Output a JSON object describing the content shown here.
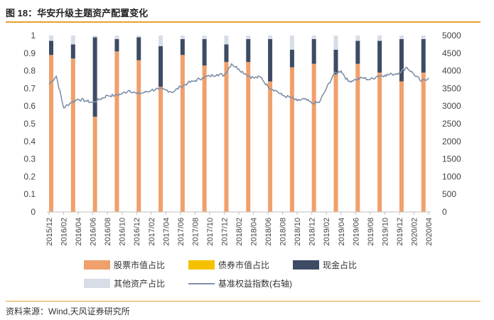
{
  "figure": {
    "title": "图 18：华安升级主题资产配置变化",
    "source": "资料来源：Wind,天风证券研究所"
  },
  "colors": {
    "stock": "#f0a06b",
    "bond": "#f5c000",
    "cash": "#3d4b64",
    "other": "#d7dde6",
    "index": "#8090a8",
    "rule": "#e8a030"
  },
  "chart_data": {
    "type": "bar",
    "title": "",
    "xlabel": "",
    "ylabel": "",
    "ylim": [
      0,
      1
    ],
    "y2lim": [
      0,
      5000
    ],
    "yticks": [
      "0",
      "0.1",
      "0.2",
      "0.3",
      "0.4",
      "0.5",
      "0.6",
      "0.7",
      "0.8",
      "0.9",
      "1"
    ],
    "y2ticks": [
      "0",
      "500",
      "1000",
      "1500",
      "2000",
      "2500",
      "3000",
      "3500",
      "4000",
      "4500",
      "5000"
    ],
    "x_tick_labels": [
      "2015/12",
      "2016/02",
      "2016/04",
      "2016/06",
      "2016/08",
      "2016/10",
      "2016/12",
      "2017/02",
      "2017/04",
      "2017/06",
      "2017/08",
      "2017/10",
      "2017/12",
      "2018/02",
      "2018/04",
      "2018/06",
      "2018/08",
      "2018/10",
      "2018/12",
      "2019/02",
      "2019/04",
      "2019/06",
      "2019/08",
      "2019/10",
      "2019/12",
      "2020/02",
      "2020/04"
    ],
    "categories": [
      "2015/12",
      "2016/03",
      "2016/06",
      "2016/09",
      "2016/12",
      "2017/03",
      "2017/06",
      "2017/09",
      "2017/12",
      "2018/03",
      "2018/06",
      "2018/09",
      "2018/12",
      "2019/03",
      "2019/06",
      "2019/09",
      "2019/12",
      "2020/03"
    ],
    "series": [
      {
        "name": "股票市值占比",
        "key": "stock",
        "values": [
          0.89,
          0.87,
          0.54,
          0.91,
          0.86,
          0.71,
          0.89,
          0.83,
          0.85,
          0.85,
          0.74,
          0.82,
          0.84,
          0.78,
          0.84,
          0.79,
          0.74,
          0.79
        ]
      },
      {
        "name": "债券市值占比",
        "key": "bond",
        "values": [
          0.0,
          0.0,
          0.0,
          0.0,
          0.0,
          0.0,
          0.0,
          0.0,
          0.0,
          0.0,
          0.0,
          0.0,
          0.0,
          0.0,
          0.0,
          0.0,
          0.0,
          0.0
        ]
      },
      {
        "name": "现金占比",
        "key": "cash",
        "values": [
          0.08,
          0.08,
          0.45,
          0.07,
          0.13,
          0.23,
          0.09,
          0.15,
          0.1,
          0.13,
          0.24,
          0.1,
          0.14,
          0.14,
          0.13,
          0.18,
          0.24,
          0.19
        ]
      },
      {
        "name": "其他资产占比",
        "key": "other",
        "values": [
          0.03,
          0.05,
          0.01,
          0.02,
          0.01,
          0.06,
          0.02,
          0.02,
          0.05,
          0.02,
          0.02,
          0.08,
          0.02,
          0.08,
          0.03,
          0.03,
          0.02,
          0.02
        ]
      }
    ],
    "line_series": {
      "name": "基准权益指数(右轴)",
      "axis": "right",
      "x": [
        "2015/12",
        "2016/01",
        "2016/02",
        "2016/03",
        "2016/04",
        "2016/05",
        "2016/06",
        "2016/07",
        "2016/08",
        "2016/09",
        "2016/10",
        "2016/11",
        "2016/12",
        "2017/01",
        "2017/02",
        "2017/03",
        "2017/04",
        "2017/05",
        "2017/06",
        "2017/07",
        "2017/08",
        "2017/09",
        "2017/10",
        "2017/11",
        "2017/12",
        "2018/01",
        "2018/02",
        "2018/03",
        "2018/04",
        "2018/05",
        "2018/06",
        "2018/07",
        "2018/08",
        "2018/09",
        "2018/10",
        "2018/11",
        "2018/12",
        "2019/01",
        "2019/02",
        "2019/03",
        "2019/04",
        "2019/05",
        "2019/06",
        "2019/07",
        "2019/08",
        "2019/09",
        "2019/10",
        "2019/11",
        "2019/12",
        "2020/01",
        "2020/02",
        "2020/03",
        "2020/04"
      ],
      "values": [
        3620,
        3850,
        2950,
        3100,
        3200,
        3150,
        3100,
        3200,
        3300,
        3300,
        3350,
        3450,
        3350,
        3380,
        3450,
        3480,
        3460,
        3400,
        3550,
        3650,
        3720,
        3800,
        3850,
        3900,
        3880,
        4200,
        4050,
        3900,
        3800,
        3820,
        3550,
        3450,
        3300,
        3250,
        3150,
        3200,
        3080,
        3100,
        3500,
        3900,
        4000,
        3700,
        3750,
        3800,
        3750,
        3850,
        3880,
        3900,
        3950,
        4100,
        3900,
        3700,
        3800
      ]
    },
    "legend": {
      "position": "bottom",
      "items": [
        {
          "label": "股票市值占比",
          "key": "stock",
          "kind": "box"
        },
        {
          "label": "债券市值占比",
          "key": "bond",
          "kind": "box"
        },
        {
          "label": "现金占比",
          "key": "cash",
          "kind": "box"
        },
        {
          "label": "其他资产占比",
          "key": "other",
          "kind": "box"
        },
        {
          "label": "基准权益指数(右轴)",
          "key": "index",
          "kind": "line"
        }
      ]
    },
    "grid": false
  }
}
